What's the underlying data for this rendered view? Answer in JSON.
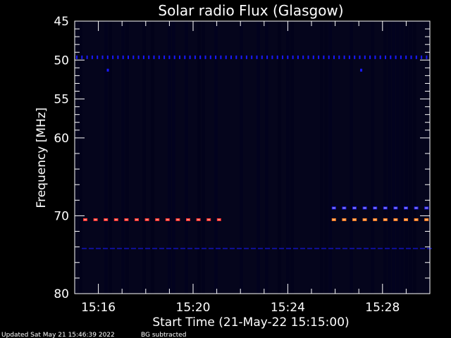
{
  "chart_data": {
    "type": "heatmap",
    "title": "Solar radio Flux (Glasgow)",
    "xlabel": "Start Time (21-May-22 15:15:00)",
    "ylabel": "Frequency [MHz]",
    "x_tick_labels": [
      "15:16",
      "15:20",
      "15:24",
      "15:28"
    ],
    "x_tick_minutes": [
      16,
      20,
      24,
      28
    ],
    "xlim_minutes": [
      15.0,
      30.0
    ],
    "y_tick_labels": [
      "45",
      "50",
      "55",
      "60",
      "70",
      "80"
    ],
    "y_tick_values": [
      45,
      50,
      55,
      60,
      70,
      80
    ],
    "ylim": [
      45,
      80
    ],
    "y_inverted": true,
    "colors": {
      "background": "#000000",
      "field": "#05051c",
      "axis": "#ffffff",
      "band_blue": "#1a1aff",
      "band_red": "#ff2a2a",
      "band_orange": "#ff7a1a"
    },
    "bands": [
      {
        "freq": 49.6,
        "start": 15.0,
        "end": 30.0,
        "color": "band_blue",
        "style": "dots"
      },
      {
        "freq": 70.5,
        "start": 15.0,
        "end": 21.2,
        "color": "band_red",
        "style": "dashes"
      },
      {
        "freq": 70.5,
        "start": 25.5,
        "end": 30.0,
        "color": "band_orange",
        "style": "dashes"
      },
      {
        "freq": 69.0,
        "start": 25.5,
        "end": 30.0,
        "color": "band_blue",
        "style": "dashes"
      },
      {
        "freq": 74.2,
        "start": 15.0,
        "end": 30.0,
        "color": "band_blue",
        "style": "faint"
      }
    ],
    "spots": [
      {
        "time": 16.4,
        "freq": 51.3
      },
      {
        "time": 27.1,
        "freq": 51.3
      }
    ]
  },
  "footer": {
    "updated": "Updated Sat May 21 15:46:39 2022",
    "note": "BG subtracted"
  }
}
